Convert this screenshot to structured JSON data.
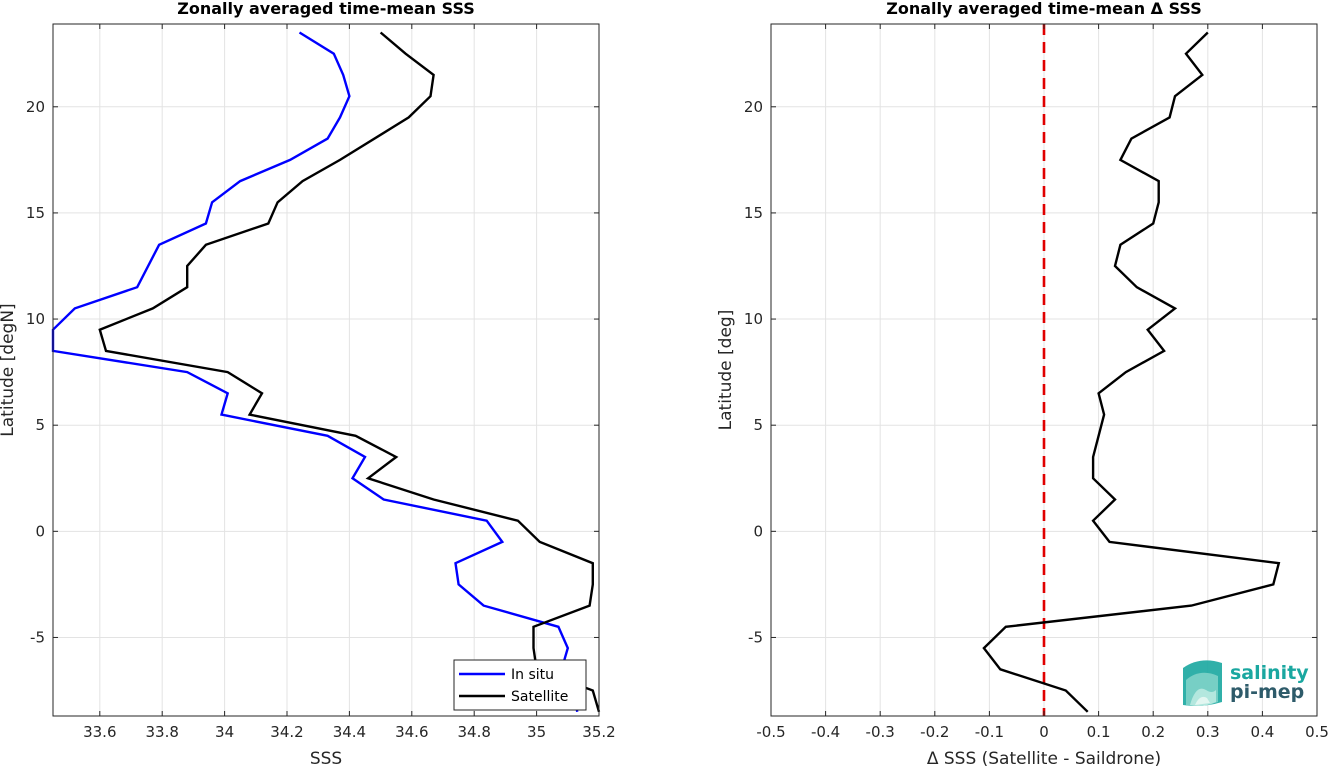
{
  "chart_data": [
    {
      "type": "line",
      "title": "Zonally averaged time-mean SSS",
      "xlabel": "SSS",
      "ylabel": "Latitude [degN]",
      "xlim": [
        33.45,
        35.2
      ],
      "ylim": [
        -8.7,
        23.9
      ],
      "xticks": [
        33.6,
        33.8,
        34,
        34.2,
        34.4,
        34.6,
        34.8,
        35,
        35.2
      ],
      "xtick_labels": [
        "33.6",
        "33.8",
        "34",
        "34.2",
        "34.4",
        "34.6",
        "34.8",
        "35",
        "35.2"
      ],
      "yticks": [
        -5,
        0,
        5,
        10,
        15,
        20
      ],
      "ytick_labels": [
        "-5",
        "0",
        "5",
        "10",
        "15",
        "20"
      ],
      "grid": true,
      "legend_position": "bottom-right",
      "series": [
        {
          "name": "In situ",
          "color": "#0000ff",
          "x": [
            34.24,
            34.35,
            34.38,
            34.4,
            34.37,
            34.33,
            34.21,
            34.05,
            33.96,
            33.94,
            33.79,
            33.72,
            33.52,
            33.45,
            33.45,
            33.88,
            34.01,
            33.99,
            34.33,
            34.45,
            34.41,
            34.51,
            34.84,
            34.89,
            34.74,
            34.75,
            34.83,
            35.07,
            35.1,
            35.08,
            35.12,
            35.13
          ],
          "y": [
            23.5,
            22.5,
            21.5,
            20.5,
            19.5,
            18.5,
            17.5,
            16.5,
            15.5,
            14.5,
            13.5,
            11.5,
            10.5,
            9.5,
            8.5,
            7.5,
            6.5,
            5.5,
            4.5,
            3.5,
            2.5,
            1.5,
            0.5,
            -0.5,
            -1.5,
            -2.5,
            -3.5,
            -4.5,
            -5.5,
            -6.5,
            -7.5,
            -8.5
          ]
        },
        {
          "name": "Satellite",
          "color": "#000000",
          "x": [
            34.5,
            34.58,
            34.67,
            34.66,
            34.59,
            34.37,
            34.25,
            34.17,
            34.14,
            33.94,
            33.88,
            33.88,
            33.77,
            33.6,
            33.62,
            34.01,
            34.12,
            34.08,
            34.42,
            34.55,
            34.46,
            34.67,
            34.94,
            35.01,
            35.18,
            35.18,
            35.17,
            34.99,
            34.99,
            35.0,
            35.18,
            35.2
          ],
          "y": [
            23.5,
            22.5,
            21.5,
            20.5,
            19.5,
            17.5,
            16.5,
            15.5,
            14.5,
            13.5,
            12.5,
            11.5,
            10.5,
            9.5,
            8.5,
            7.5,
            6.5,
            5.5,
            4.5,
            3.5,
            2.5,
            1.5,
            0.5,
            -0.5,
            -1.5,
            -2.5,
            -3.5,
            -4.5,
            -5.5,
            -6.5,
            -7.5,
            -8.5
          ]
        }
      ]
    },
    {
      "type": "line",
      "title": "Zonally averaged time-mean Δ SSS",
      "xlabel": "Δ SSS (Satellite - Saildrone)",
      "ylabel": "Latitude [deg]",
      "xlim": [
        -0.5,
        0.5
      ],
      "ylim": [
        -8.7,
        23.9
      ],
      "xticks": [
        -0.5,
        -0.4,
        -0.3,
        -0.2,
        -0.1,
        0,
        0.1,
        0.2,
        0.3,
        0.4,
        0.5
      ],
      "xtick_labels": [
        "-0.5",
        "-0.4",
        "-0.3",
        "-0.2",
        "-0.1",
        "0",
        "0.1",
        "0.2",
        "0.3",
        "0.4",
        "0.5"
      ],
      "yticks": [
        -5,
        0,
        5,
        10,
        15,
        20
      ],
      "ytick_labels": [
        "-5",
        "0",
        "5",
        "10",
        "15",
        "20"
      ],
      "grid": true,
      "reference_line": {
        "x": 0,
        "color": "#e00000",
        "style": "dashed"
      },
      "series": [
        {
          "color": "#000000",
          "x": [
            0.3,
            0.26,
            0.29,
            0.24,
            0.23,
            0.16,
            0.14,
            0.21,
            0.21,
            0.2,
            0.14,
            0.13,
            0.17,
            0.24,
            0.19,
            0.22,
            0.15,
            0.1,
            0.11,
            0.1,
            0.09,
            0.09,
            0.13,
            0.09,
            0.12,
            0.43,
            0.42,
            0.27,
            -0.07,
            -0.11,
            -0.08,
            0.04,
            0.08
          ],
          "y": [
            23.5,
            22.5,
            21.5,
            20.5,
            19.5,
            18.5,
            17.5,
            16.5,
            15.5,
            14.5,
            13.5,
            12.5,
            11.5,
            10.5,
            9.5,
            8.5,
            7.5,
            6.5,
            5.5,
            4.5,
            3.5,
            2.5,
            1.5,
            0.5,
            -0.5,
            -1.5,
            -2.5,
            -3.5,
            -4.5,
            -5.5,
            -6.5,
            -7.5,
            -8.5
          ]
        }
      ]
    }
  ],
  "logo": {
    "word1": "salinity",
    "word2": "pi-mep",
    "color1": "#1aa7a0",
    "color2": "#2e5b6a"
  }
}
